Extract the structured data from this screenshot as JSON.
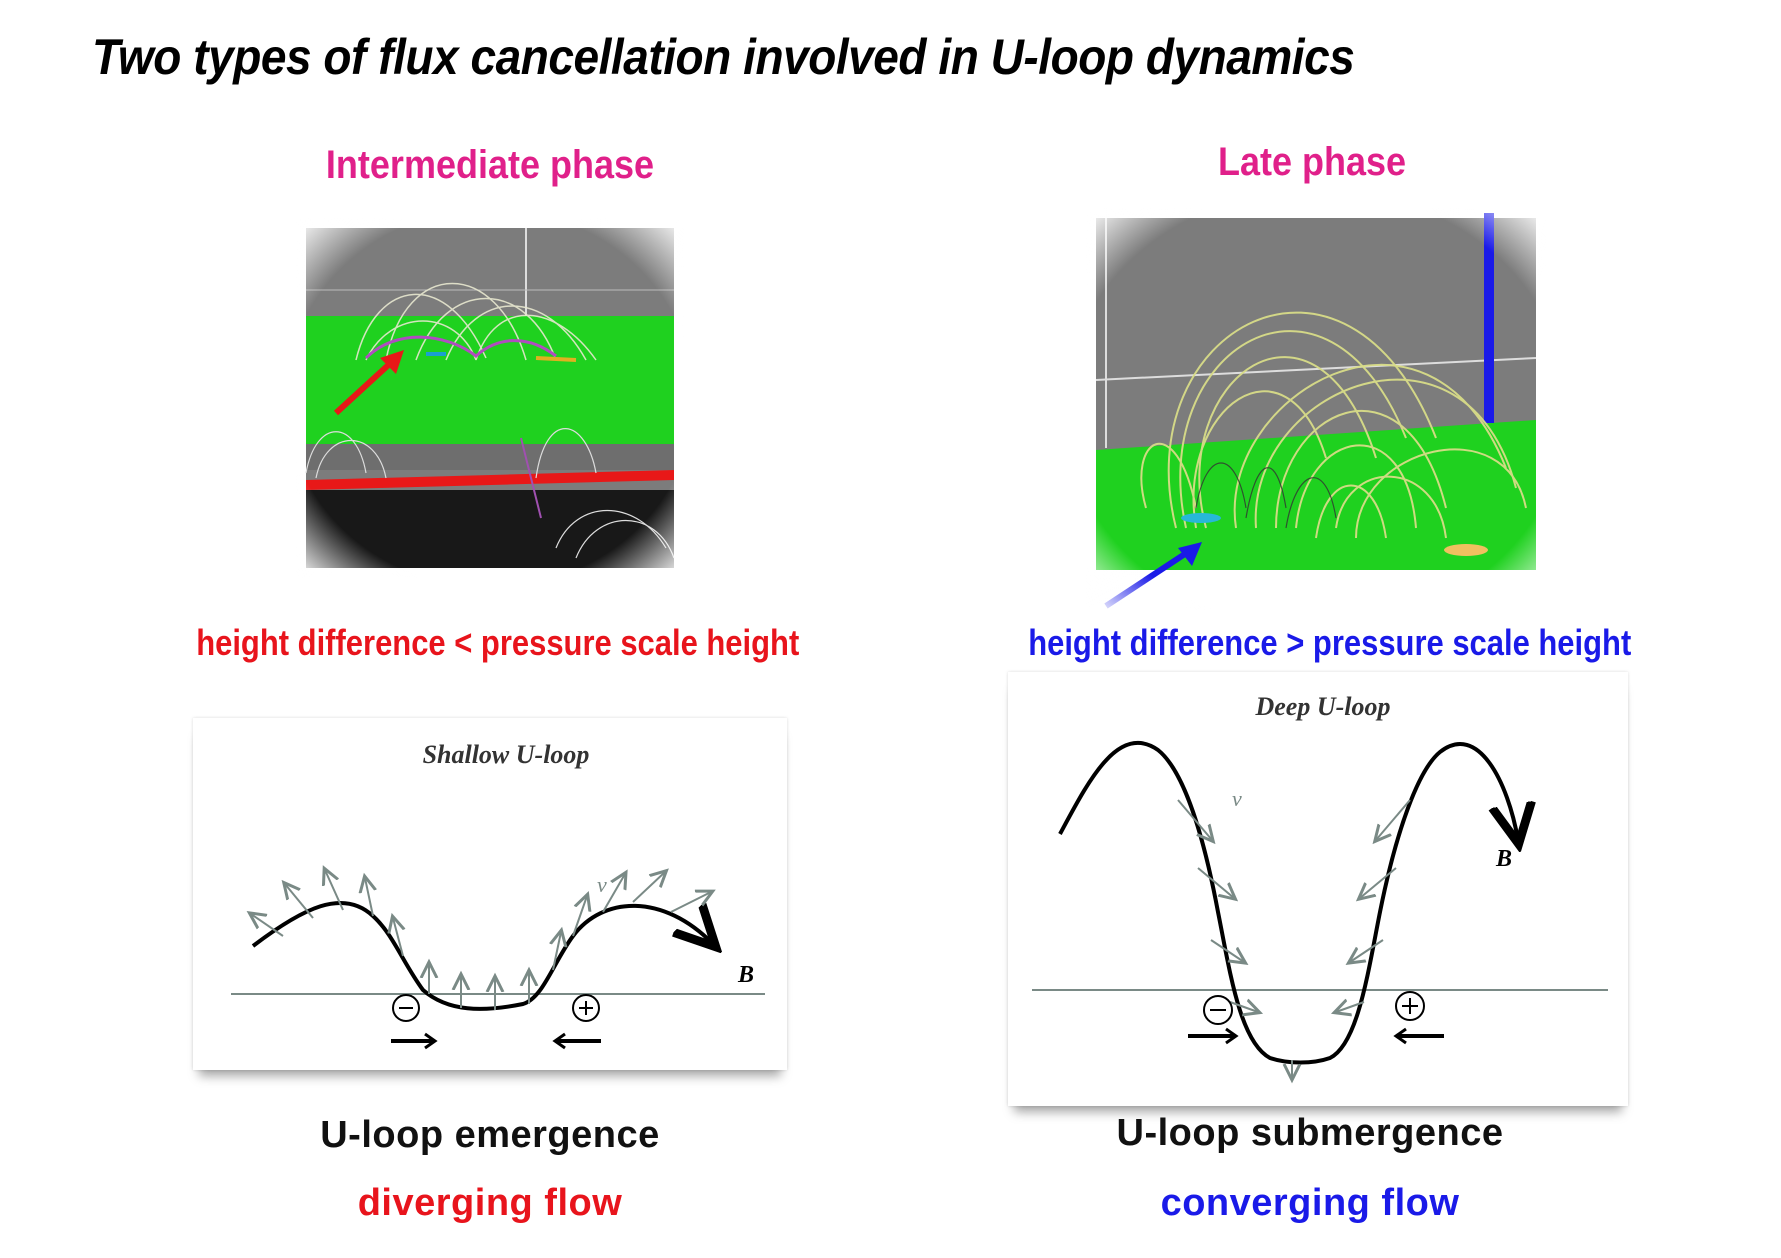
{
  "title": "Two types of flux cancellation involved in U-loop dynamics",
  "left": {
    "phase": "Intermediate phase",
    "condition": "height difference < pressure scale height",
    "diagram_title": "Shallow U-loop",
    "velocity_label": "v",
    "field_label": "B",
    "minus_symbol": "−",
    "plus_symbol": "+",
    "caption": "U-loop emergence",
    "flow": "diverging flow",
    "color": "#e8141c"
  },
  "right": {
    "phase": "Late phase",
    "condition": "height difference > pressure scale height",
    "diagram_title": "Deep U-loop",
    "velocity_label": "v",
    "field_label": "B",
    "minus_symbol": "−",
    "plus_symbol": "+",
    "caption": "U-loop submergence",
    "flow": "converging flow",
    "color": "#1a1ae8"
  },
  "colors": {
    "phase": "#e0208a",
    "sim_green": "#1fd11f",
    "sim_gray": "#7c7c7c",
    "sim_red": "#e81818",
    "sim_blue": "#1a1ae8"
  }
}
